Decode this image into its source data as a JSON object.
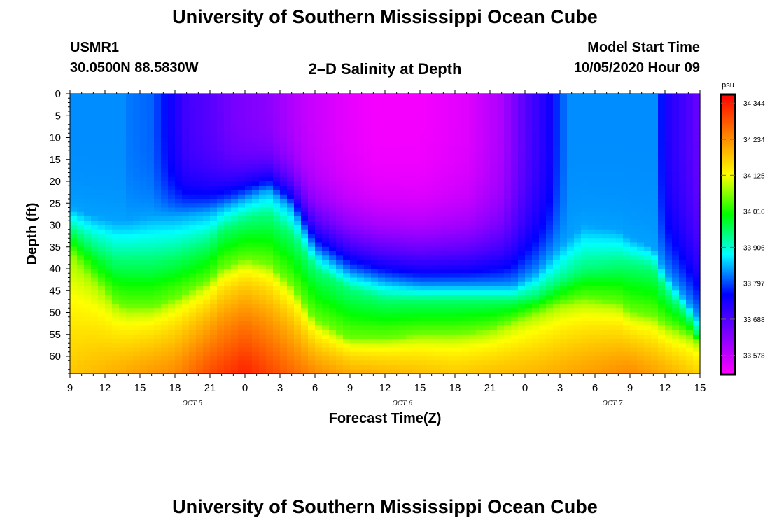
{
  "page": {
    "title_top": "University of Southern Mississippi Ocean Cube",
    "title_bottom": "University of Southern Mississippi Ocean Cube",
    "station_id": "USMR1",
    "station_coords": "30.0500N 88.5830W",
    "plot_title": "2–D Salinity at Depth",
    "model_start_label": "Model Start Time",
    "model_start_value": "10/05/2020 Hour 09"
  },
  "chart_data": {
    "type": "heatmap",
    "title": "2–D Salinity at Depth",
    "xlabel": "Forecast Time(Z)",
    "ylabel": "Depth (ft)",
    "x_range_hours": [
      0,
      54
    ],
    "x_tick_labels": [
      "9",
      "12",
      "15",
      "18",
      "21",
      "0",
      "3",
      "6",
      "9",
      "12",
      "15",
      "18",
      "21",
      "0",
      "3",
      "6",
      "9",
      "12",
      "15"
    ],
    "day_labels": [
      {
        "text": "OCT 5",
        "hour_index": 3
      },
      {
        "text": "OCT 6",
        "hour_index": 9
      },
      {
        "text": "OCT 7",
        "hour_index": 15
      }
    ],
    "y_range_ft": [
      0,
      64
    ],
    "y_ticks": [
      0,
      5,
      10,
      15,
      20,
      25,
      30,
      35,
      40,
      45,
      50,
      55,
      60
    ],
    "y_inverted": true,
    "colorbar": {
      "unit": "psu",
      "min": 33.52,
      "max": 34.37,
      "tick_values": [
        34.344,
        34.234,
        34.125,
        34.016,
        33.906,
        33.797,
        33.688,
        33.578
      ],
      "tick_labels": [
        "34.344",
        "34.234",
        "34.125",
        "34.016",
        "33.906",
        "33.797",
        "33.688",
        "33.578"
      ],
      "colors_low_to_high": [
        "#ff00ff",
        "#8000ff",
        "#0000ff",
        "#00ffff",
        "#00ff00",
        "#ffff00",
        "#ff8000",
        "#ff0000"
      ]
    },
    "transition_depths_note": "depth (ft) of iso-salinity transitions vs forecast hour",
    "isolines": {
      "hours": [
        0,
        2,
        4,
        5,
        7,
        9,
        12,
        13,
        15,
        17,
        19,
        21,
        24,
        27,
        30,
        33,
        36,
        38,
        40,
        42,
        44,
        47,
        48,
        50,
        51,
        53,
        54
      ],
      "d_yellow": [
        36,
        42,
        48,
        49,
        49,
        47,
        43,
        40,
        38,
        39,
        44,
        52,
        56,
        56,
        55,
        55,
        54,
        52,
        50,
        48,
        47,
        48,
        50,
        51,
        53,
        55,
        57
      ],
      "d_green": [
        31,
        35,
        38,
        38,
        38,
        37,
        34,
        31,
        29,
        28,
        32,
        40,
        45,
        47,
        47,
        47,
        47,
        47,
        46,
        43,
        40,
        39,
        39,
        40,
        45,
        51,
        56
      ],
      "d_cyan": [
        26,
        28,
        29,
        29,
        28,
        28,
        27,
        26,
        24,
        22,
        26,
        36,
        41,
        43,
        44,
        44,
        44,
        44,
        41,
        35,
        30,
        31,
        33,
        35,
        41,
        48,
        52
      ]
    },
    "surface_profile": {
      "hours": [
        0,
        3,
        5,
        7,
        10,
        12,
        14,
        17,
        20,
        23,
        26,
        30,
        34,
        37,
        39,
        41,
        42,
        44,
        47,
        50,
        51,
        53,
        54
      ],
      "values": [
        33.9,
        33.9,
        33.81,
        33.76,
        33.69,
        33.67,
        33.65,
        33.63,
        33.58,
        33.55,
        33.53,
        33.53,
        33.55,
        33.6,
        33.68,
        33.74,
        33.8,
        33.87,
        33.88,
        33.84,
        33.74,
        33.69,
        33.66
      ]
    },
    "upper_layer_interior": {
      "hours": [
        0,
        3,
        5,
        7,
        10,
        12,
        14,
        17,
        20,
        23,
        26,
        30,
        34,
        37,
        39,
        41,
        42,
        44,
        47,
        50,
        51,
        53,
        54
      ],
      "values": [
        33.9,
        33.9,
        33.82,
        33.81,
        33.7,
        33.68,
        33.65,
        33.63,
        33.58,
        33.55,
        33.53,
        33.53,
        33.55,
        33.6,
        33.68,
        33.74,
        33.8,
        33.87,
        33.88,
        33.84,
        33.74,
        33.69,
        33.66
      ]
    },
    "bottom_profile": {
      "hours": [
        0,
        3,
        6,
        9,
        12,
        15,
        18,
        21,
        24,
        27,
        30,
        33,
        36,
        40,
        44,
        48,
        51,
        54
      ],
      "values": [
        34.18,
        34.2,
        34.22,
        34.24,
        34.3,
        34.34,
        34.29,
        34.24,
        34.21,
        34.2,
        34.19,
        34.18,
        34.19,
        34.2,
        34.22,
        34.24,
        34.21,
        34.17
      ]
    }
  }
}
